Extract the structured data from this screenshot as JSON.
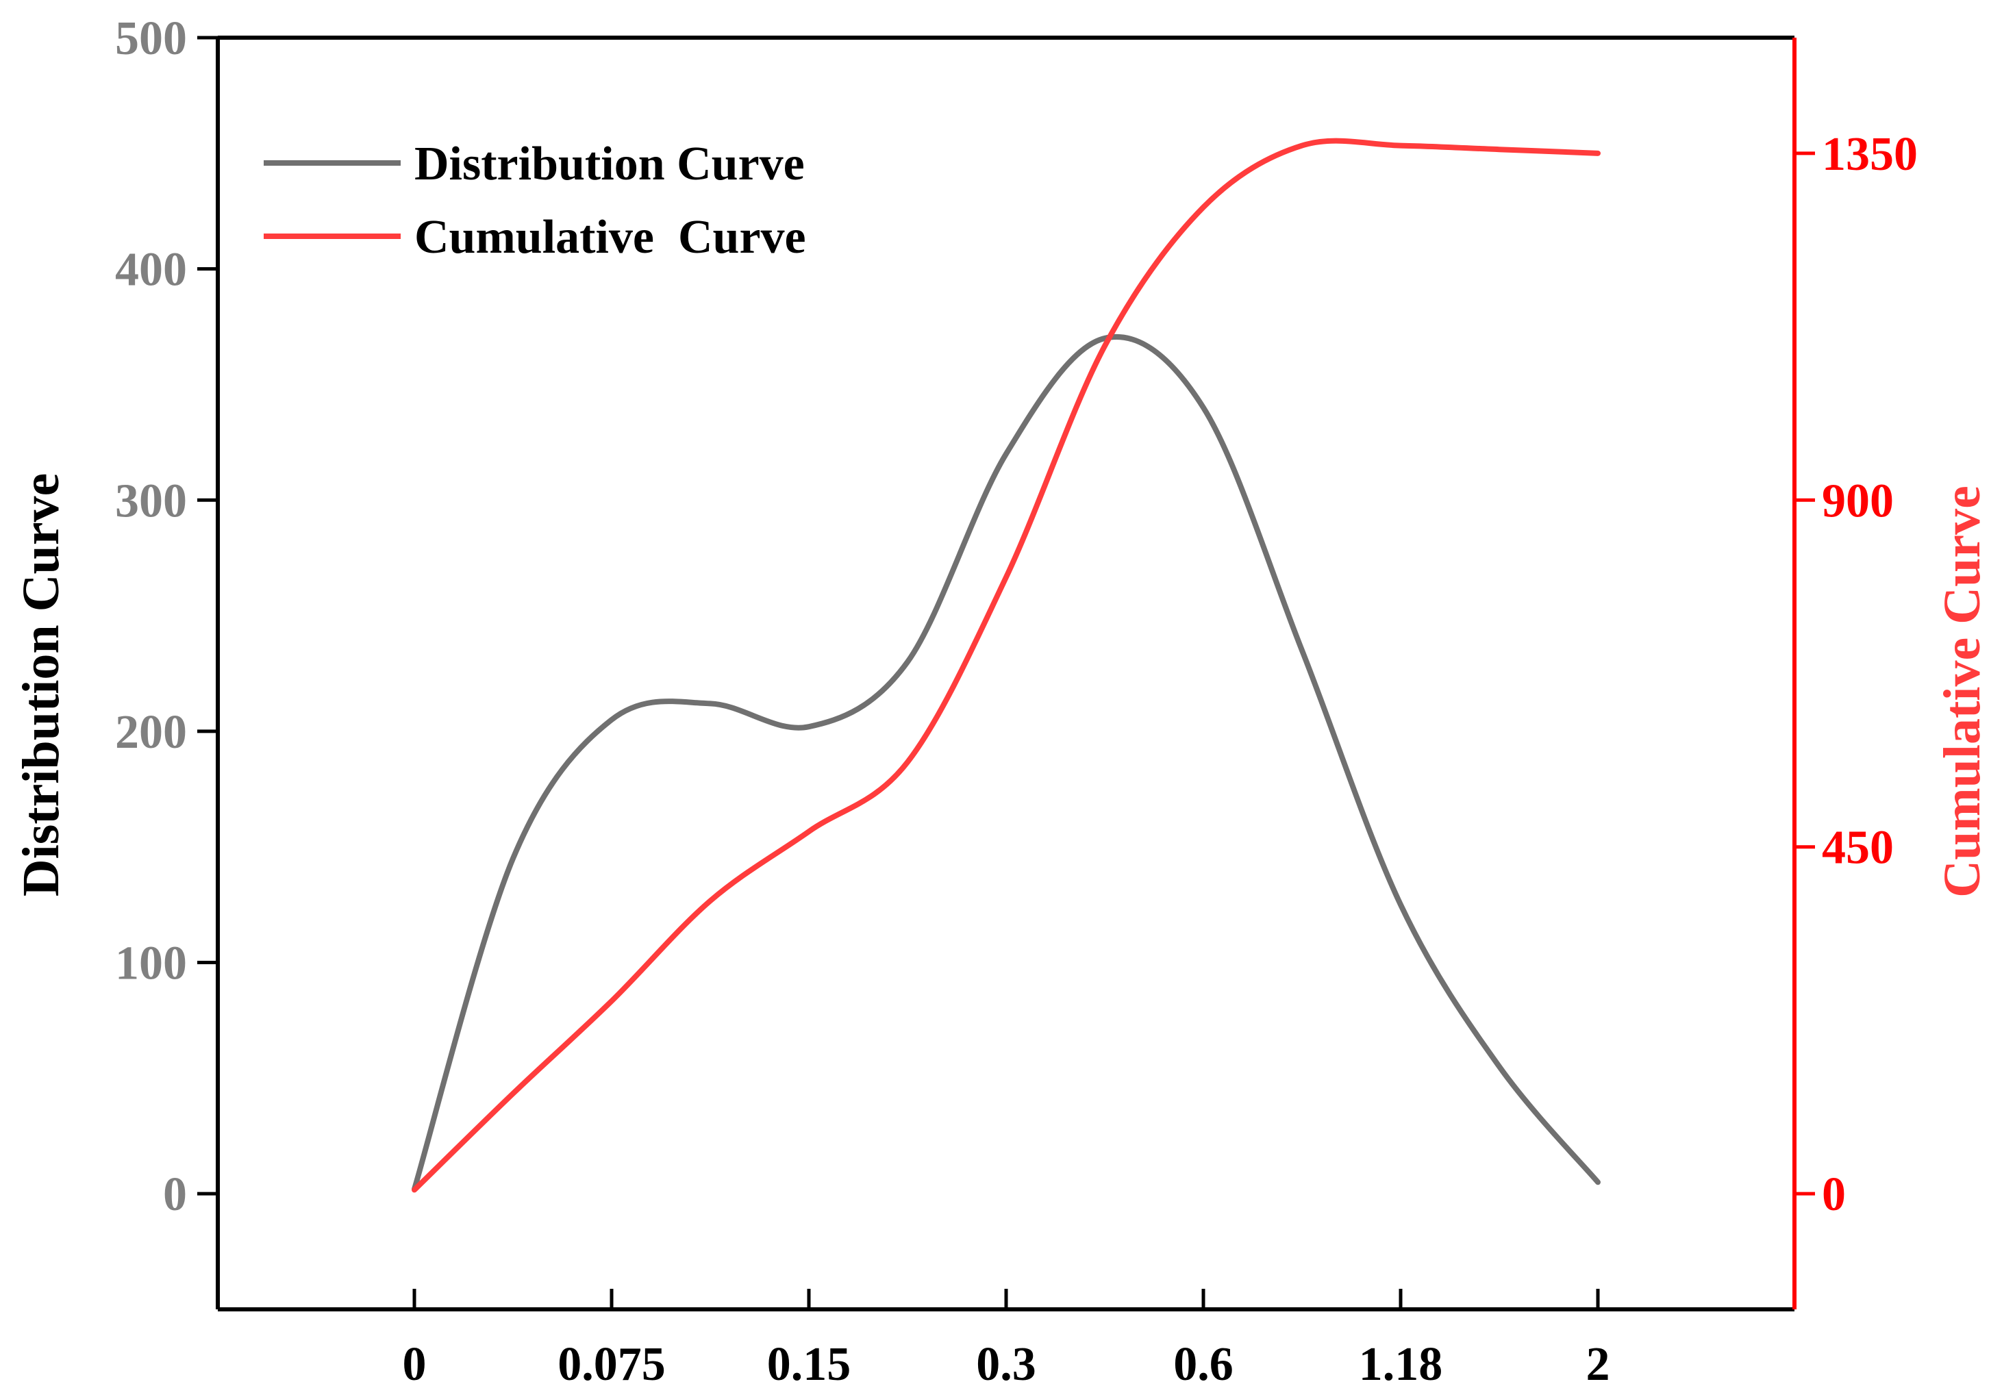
{
  "chart_data": {
    "type": "line",
    "categories": [
      "0",
      "0.075",
      "0.15",
      "0.3",
      "0.6",
      "1.18",
      "2"
    ],
    "title": "",
    "xlabel": "",
    "ylabel_left": "Distribution Curve",
    "ylabel_right": "Cumulative Curve",
    "ylim_left": [
      -50,
      500
    ],
    "ylim_right": [
      -150,
      1500
    ],
    "yticks_left": [
      0,
      100,
      200,
      300,
      400,
      500
    ],
    "yticks_left_labels": [
      "0",
      "100",
      "200",
      "300",
      "400",
      "500"
    ],
    "yticks_right": [
      0,
      450,
      900,
      1350
    ],
    "yticks_right_labels": [
      "0",
      "450",
      "900",
      "1350"
    ],
    "legend_position": "top-left",
    "series": [
      {
        "name": "Distribution Curve",
        "axis": "left",
        "color": "#707070",
        "x": [
          0,
          0.5,
          1,
          1.5,
          2,
          2.5,
          3,
          3.5,
          4,
          4.5,
          5,
          5.5,
          6
        ],
        "values": [
          2,
          145,
          205,
          212,
          202,
          230,
          320,
          370,
          340,
          235,
          125,
          55,
          5
        ]
      },
      {
        "name": "Cumulative  Curve",
        "axis": "right",
        "color": "#ff3c3c",
        "x": [
          0,
          0.5,
          1,
          1.5,
          2,
          2.5,
          3,
          3.5,
          4,
          4.5,
          5,
          5.5,
          6
        ],
        "values": [
          5,
          130,
          250,
          380,
          470,
          560,
          800,
          1100,
          1280,
          1360,
          1360,
          1355,
          1350
        ]
      }
    ]
  }
}
